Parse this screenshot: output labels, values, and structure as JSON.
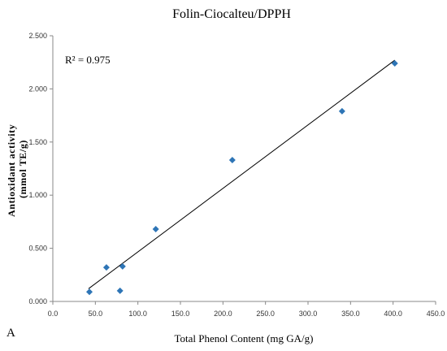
{
  "chart_data": {
    "type": "scatter",
    "title": "Folin-Ciocalteu/DPPH",
    "xlabel": "Total Phenol Content (mg GA/g)",
    "ylabel_line1": "Antioxidant activity",
    "ylabel_line2": "(mmol TE/g)",
    "annotation": "R² = 0.975",
    "panel_label": "A",
    "xlim": [
      0,
      450
    ],
    "ylim": [
      0,
      2.5
    ],
    "x_ticks": [
      0,
      50,
      100,
      150,
      200,
      250,
      300,
      350,
      400,
      450
    ],
    "y_ticks": [
      0,
      0.5,
      1.0,
      1.5,
      2.0,
      2.5
    ],
    "x_tick_labels": [
      "0.0",
      "50.0",
      "100.0",
      "150.0",
      "200.0",
      "250.0",
      "300.0",
      "350.0",
      "400.0",
      "450.0"
    ],
    "y_tick_labels": [
      "0.000",
      "0.500",
      "1.000",
      "1.500",
      "2.000",
      "2.500"
    ],
    "grid": false,
    "marker_color": "#2e75b6",
    "trendline_color": "#000000",
    "series": [
      {
        "points": [
          {
            "x": 43,
            "y": 0.09
          },
          {
            "x": 63,
            "y": 0.32
          },
          {
            "x": 79,
            "y": 0.1
          },
          {
            "x": 82,
            "y": 0.33
          },
          {
            "x": 121,
            "y": 0.68
          },
          {
            "x": 211,
            "y": 1.33
          },
          {
            "x": 340,
            "y": 1.79
          },
          {
            "x": 402,
            "y": 2.24
          }
        ]
      }
    ],
    "trendline": {
      "x1": 42,
      "y1": 0.12,
      "x2": 402,
      "y2": 2.27
    }
  }
}
